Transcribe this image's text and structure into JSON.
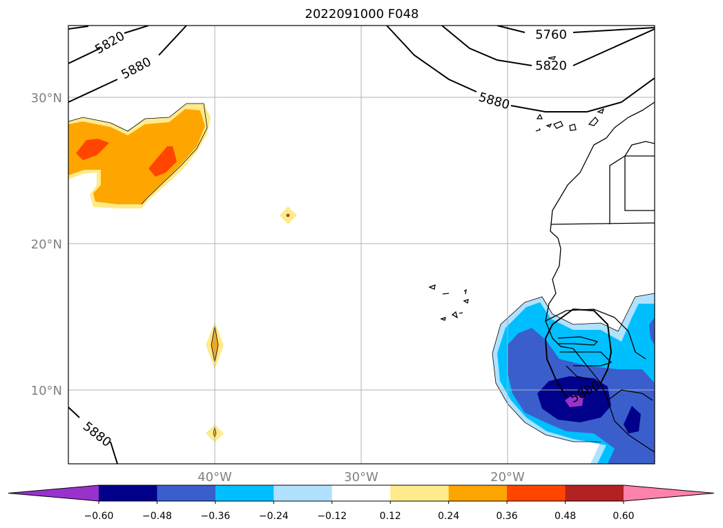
{
  "title": "2022091000 F048",
  "map": {
    "lat_labels": [
      "30°N",
      "20°N",
      "10°N"
    ],
    "lon_labels": [
      "40°W",
      "30°W",
      "20°W"
    ],
    "contour_labels": [
      "5820",
      "5880",
      "5760",
      "5820",
      "5880",
      "5880",
      "5880"
    ]
  },
  "colorbar": {
    "ticks": [
      "−0.60",
      "−0.48",
      "−0.36",
      "−0.24",
      "−0.12",
      "0.12",
      "0.24",
      "0.36",
      "0.48",
      "0.60"
    ],
    "colors": [
      "#9932cc",
      "#00008b",
      "#3a5fcd",
      "#00bfff",
      "#b0e2ff",
      "#ffffff",
      "#fdeb8c",
      "#ffa500",
      "#ff4500",
      "#b22222",
      "#ff82ab"
    ]
  }
}
